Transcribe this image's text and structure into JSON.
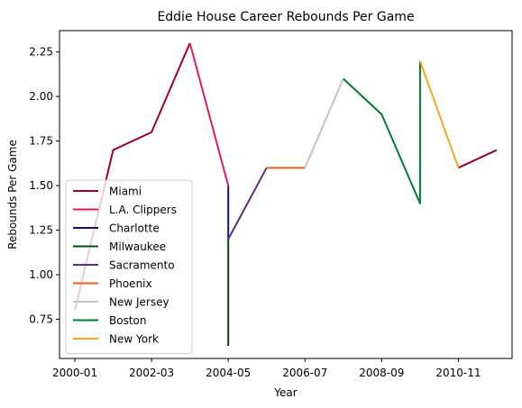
{
  "chart_data": {
    "type": "line",
    "title": "Eddie House Career Rebounds Per Game",
    "xlabel": "Year",
    "ylabel": "Rebounds Per Game",
    "x_ticks": [
      "2000-01",
      "2002-03",
      "2004-05",
      "2006-07",
      "2008-09",
      "2010-11"
    ],
    "x_range": [
      -0.4,
      11.4
    ],
    "y_ticks": [
      "0.75",
      "1.00",
      "1.25",
      "1.50",
      "1.75",
      "2.00",
      "2.25"
    ],
    "ylim": [
      0.53,
      2.37
    ],
    "grid": false,
    "legend_position": "lower-left",
    "series": [
      {
        "name": "Miami",
        "color": "#98002E",
        "segments": [
          [
            [
              0,
              0.8
            ],
            [
              1,
              1.7
            ],
            [
              2,
              1.8
            ],
            [
              3,
              2.3
            ]
          ],
          [
            [
              10,
              1.6
            ],
            [
              11,
              1.7
            ]
          ]
        ]
      },
      {
        "name": "L.A. Clippers",
        "color": "#E31C4F",
        "segments": [
          [
            [
              3,
              2.3
            ],
            [
              4,
              1.5
            ]
          ]
        ]
      },
      {
        "name": "Charlotte",
        "color": "#1D1160",
        "segments": [
          [
            [
              4,
              1.5
            ],
            [
              4,
              1.2
            ]
          ]
        ]
      },
      {
        "name": "Milwaukee",
        "color": "#00471B",
        "segments": [
          [
            [
              4,
              1.2
            ],
            [
              4,
              0.6
            ]
          ]
        ]
      },
      {
        "name": "Sacramento",
        "color": "#5A2D81",
        "segments": [
          [
            [
              4,
              1.2
            ],
            [
              5,
              1.6
            ]
          ]
        ]
      },
      {
        "name": "Phoenix",
        "color": "#E56020",
        "segments": [
          [
            [
              5,
              1.6
            ],
            [
              6,
              1.6
            ]
          ]
        ]
      },
      {
        "name": "New Jersey",
        "color": "#C4C4C4",
        "segments": [
          [
            [
              6,
              1.6
            ],
            [
              7,
              2.1
            ]
          ]
        ]
      },
      {
        "name": "Boston",
        "color": "#007A33",
        "segments": [
          [
            [
              7,
              2.1
            ],
            [
              8,
              1.9
            ],
            [
              9,
              1.4
            ],
            [
              9,
              2.2
            ]
          ]
        ]
      },
      {
        "name": "New York",
        "color": "#F5A623",
        "segments": [
          [
            [
              9,
              2.2
            ],
            [
              10,
              1.6
            ]
          ]
        ]
      }
    ]
  }
}
